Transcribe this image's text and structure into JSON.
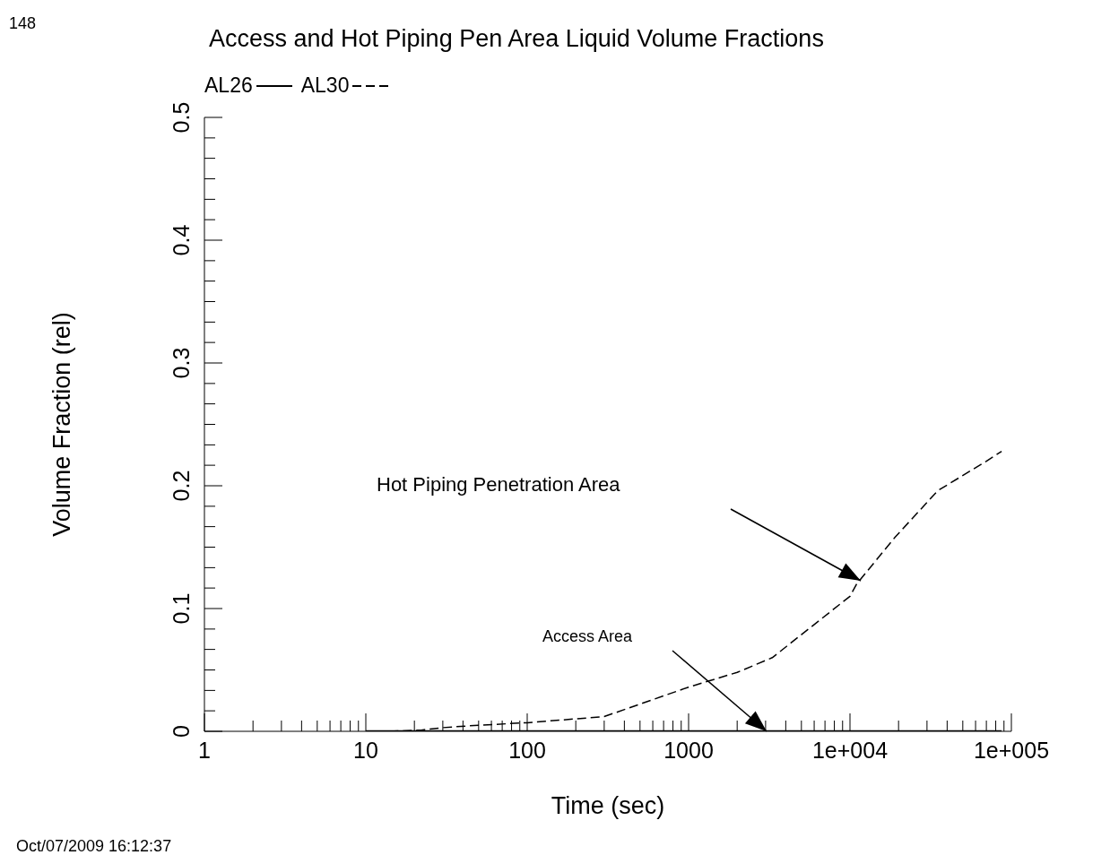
{
  "chart_data": {
    "type": "line",
    "title": "Access and Hot Piping Pen Area Liquid Volume Fractions",
    "xlabel": "Time (sec)",
    "ylabel": "Volume Fraction (rel)",
    "log": "x",
    "grid": false,
    "legend": "top left",
    "marker": "none",
    "xlim": [
      1,
      100000
    ],
    "xticks": [
      1,
      {
        "value": 2,
        "label": null
      },
      {
        "value": 3,
        "label": null
      },
      {
        "value": 4,
        "label": null
      },
      {
        "value": 5,
        "label": null
      },
      {
        "value": 6,
        "label": null
      },
      {
        "value": 7,
        "label": null
      },
      {
        "value": 8,
        "label": null
      },
      {
        "value": 9,
        "label": null
      },
      10,
      {
        "value": 20,
        "label": null
      },
      {
        "value": 30,
        "label": null
      },
      {
        "value": 40,
        "label": null
      },
      {
        "value": 50,
        "label": null
      },
      {
        "value": 60,
        "label": null
      },
      {
        "value": 70,
        "label": null
      },
      {
        "value": 80,
        "label": null
      },
      {
        "value": 90,
        "label": null
      },
      100,
      {
        "value": 200,
        "label": null
      },
      {
        "value": 300,
        "label": null
      },
      {
        "value": 400,
        "label": null
      },
      {
        "value": 500,
        "label": null
      },
      {
        "value": 600,
        "label": null
      },
      {
        "value": 700,
        "label": null
      },
      {
        "value": 800,
        "label": null
      },
      {
        "value": 900,
        "label": null
      },
      1000,
      {
        "value": 2000,
        "label": null
      },
      {
        "value": 3000,
        "label": null
      },
      {
        "value": 4000,
        "label": null
      },
      {
        "value": 5000,
        "label": null
      },
      {
        "value": 6000,
        "label": null
      },
      {
        "value": 7000,
        "label": null
      },
      {
        "value": 8000,
        "label": null
      },
      {
        "value": 9000,
        "label": null
      },
      {
        "value": 10000,
        "label": "1e+004"
      },
      {
        "value": 20000,
        "label": null
      },
      {
        "value": 30000,
        "label": null
      },
      {
        "value": 40000,
        "label": null
      },
      {
        "value": 50000,
        "label": null
      },
      {
        "value": 60000,
        "label": null
      },
      {
        "value": 70000,
        "label": null
      },
      {
        "value": 80000,
        "label": null
      },
      {
        "value": 90000,
        "label": null
      },
      {
        "value": 100000,
        "label": "1e+005"
      }
    ],
    "ylim": [
      0,
      0.5
    ],
    "yticks": [
      0,
      {
        "value": 0.0167,
        "label": null
      },
      {
        "value": 0.0333,
        "label": null
      },
      {
        "value": 0.05,
        "label": null
      },
      {
        "value": 0.0667,
        "label": null
      },
      {
        "value": 0.0833,
        "label": null
      },
      0.1,
      {
        "value": 0.1167,
        "label": null
      },
      {
        "value": 0.1333,
        "label": null
      },
      {
        "value": 0.15,
        "label": null
      },
      {
        "value": 0.1667,
        "label": null
      },
      {
        "value": 0.1833,
        "label": null
      },
      0.2,
      {
        "value": 0.2167,
        "label": null
      },
      {
        "value": 0.2333,
        "label": null
      },
      {
        "value": 0.25,
        "label": null
      },
      {
        "value": 0.2667,
        "label": null
      },
      {
        "value": 0.2833,
        "label": null
      },
      0.3,
      {
        "value": 0.3167,
        "label": null
      },
      {
        "value": 0.3333,
        "label": null
      },
      {
        "value": 0.35,
        "label": null
      },
      {
        "value": 0.3667,
        "label": null
      },
      {
        "value": 0.3833,
        "label": null
      },
      0.4,
      {
        "value": 0.4167,
        "label": null
      },
      {
        "value": 0.4333,
        "label": null
      },
      {
        "value": 0.45,
        "label": null
      },
      {
        "value": 0.4667,
        "label": null
      },
      {
        "value": 0.4833,
        "label": null
      },
      0.5
    ],
    "series": [
      {
        "name": "AL26",
        "color": "#000000",
        "line_style": "solid",
        "x": [
          10,
          100,
          1000,
          2700,
          10000,
          87000
        ],
        "values": [
          0,
          0,
          0,
          0,
          0,
          0
        ]
      },
      {
        "name": "AL30",
        "color": "#000000",
        "line_style": "dashed",
        "x": [
          14,
          22,
          30,
          50,
          100,
          300,
          1000,
          2000,
          3300,
          10000,
          11000,
          19000,
          35000,
          70000,
          87000
        ],
        "values": [
          0,
          0.001,
          0.003,
          0.005,
          0.007,
          0.012,
          0.036,
          0.048,
          0.06,
          0.11,
          0.12,
          0.158,
          0.196,
          0.22,
          0.228
        ]
      }
    ],
    "annotations": [
      "Hot Piping Penetration Area",
      "Access Area",
      "148",
      "Oct/07/2009 16:12:37"
    ]
  }
}
